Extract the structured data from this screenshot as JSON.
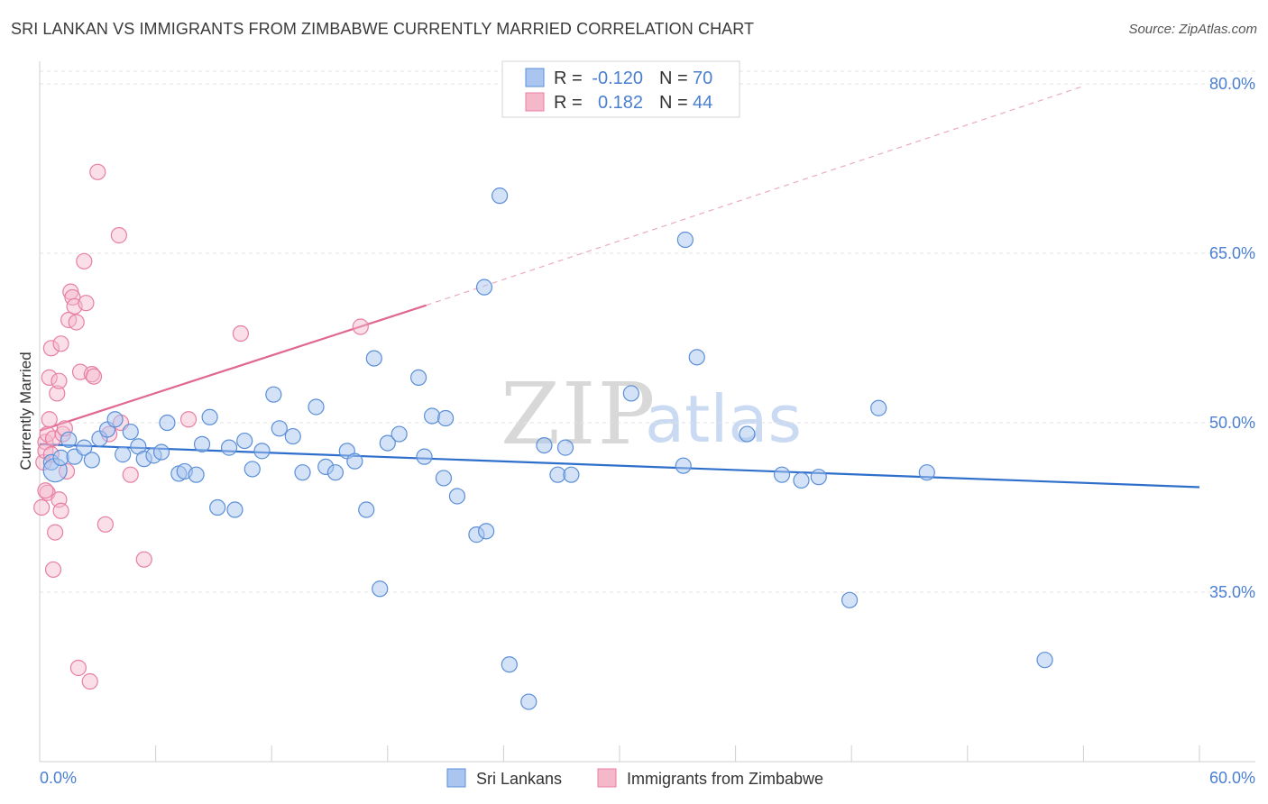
{
  "title": "SRI LANKAN VS IMMIGRANTS FROM ZIMBABWE CURRENTLY MARRIED CORRELATION CHART",
  "source": "Source: ZipAtlas.com",
  "colors": {
    "blue": "#5b8fd8",
    "blue_fill": "#aac6f0",
    "blue_line": "#2f6fcc",
    "pink": "#e87fa3",
    "pink_fill": "#f5b8cb",
    "pink_line": "#e06890",
    "axis_label": "#4a7fd0"
  },
  "legend": {
    "rows": [
      {
        "r_label": "R =",
        "r_value": "-0.120",
        "n_label": "N =",
        "n_value": "70"
      },
      {
        "r_label": "R =",
        "r_value": "0.182",
        "n_label": "N =",
        "n_value": "44"
      }
    ]
  },
  "bottom_legend": {
    "series1": "Sri Lankans",
    "series2": "Immigrants from Zimbabwe"
  },
  "watermark": {
    "zip": "ZIP",
    "atlas": "atlas"
  },
  "chart_data": {
    "type": "scatter",
    "title": "SRI LANKAN VS IMMIGRANTS FROM ZIMBABWE CURRENTLY MARRIED CORRELATION CHART",
    "xlabel": "",
    "ylabel": "Currently Married",
    "xlim": [
      0,
      60
    ],
    "ylim": [
      20,
      82
    ],
    "x_tick_labels": [
      "0.0%",
      "60.0%"
    ],
    "y_ticks": [
      35,
      50,
      65,
      80
    ],
    "y_tick_labels": [
      "35.0%",
      "50.0%",
      "65.0%",
      "80.0%"
    ],
    "grid": true,
    "series": [
      {
        "name": "Sri Lankans",
        "R": -0.12,
        "N": 70,
        "trend": {
          "x0": 0,
          "y0": 48.1,
          "x1": 60,
          "y1": 44.3
        },
        "points": [
          [
            0.6,
            46.5
          ],
          [
            0.8,
            45.8
          ],
          [
            1.1,
            46.9
          ],
          [
            1.5,
            48.5
          ],
          [
            1.8,
            47.0
          ],
          [
            2.3,
            47.8
          ],
          [
            2.7,
            46.7
          ],
          [
            3.1,
            48.6
          ],
          [
            3.5,
            49.4
          ],
          [
            3.9,
            50.3
          ],
          [
            4.3,
            47.2
          ],
          [
            4.7,
            49.2
          ],
          [
            5.1,
            47.9
          ],
          [
            5.4,
            46.8
          ],
          [
            5.9,
            47.1
          ],
          [
            6.3,
            47.4
          ],
          [
            6.6,
            50.0
          ],
          [
            7.2,
            45.5
          ],
          [
            7.5,
            45.7
          ],
          [
            8.1,
            45.4
          ],
          [
            8.4,
            48.1
          ],
          [
            8.8,
            50.5
          ],
          [
            9.2,
            42.5
          ],
          [
            9.8,
            47.8
          ],
          [
            10.1,
            42.3
          ],
          [
            10.6,
            48.4
          ],
          [
            11.0,
            45.9
          ],
          [
            11.5,
            47.5
          ],
          [
            12.1,
            52.5
          ],
          [
            12.4,
            49.5
          ],
          [
            13.1,
            48.8
          ],
          [
            13.6,
            45.6
          ],
          [
            14.3,
            51.4
          ],
          [
            14.8,
            46.1
          ],
          [
            15.3,
            45.6
          ],
          [
            15.9,
            47.5
          ],
          [
            16.3,
            46.6
          ],
          [
            16.9,
            42.3
          ],
          [
            17.3,
            55.7
          ],
          [
            17.6,
            35.3
          ],
          [
            18.0,
            48.2
          ],
          [
            18.6,
            49.0
          ],
          [
            19.6,
            54.0
          ],
          [
            19.9,
            47.0
          ],
          [
            20.3,
            50.6
          ],
          [
            20.9,
            45.1
          ],
          [
            21.0,
            50.4
          ],
          [
            21.6,
            43.5
          ],
          [
            22.6,
            40.1
          ],
          [
            23.0,
            62.0
          ],
          [
            23.1,
            40.4
          ],
          [
            23.8,
            70.1
          ],
          [
            24.3,
            28.6
          ],
          [
            25.3,
            25.3
          ],
          [
            26.1,
            48.0
          ],
          [
            26.8,
            45.4
          ],
          [
            27.2,
            47.8
          ],
          [
            27.5,
            45.4
          ],
          [
            30.6,
            52.6
          ],
          [
            33.3,
            46.2
          ],
          [
            33.4,
            66.2
          ],
          [
            34.0,
            55.8
          ],
          [
            36.6,
            49.0
          ],
          [
            38.4,
            45.4
          ],
          [
            39.4,
            44.9
          ],
          [
            40.3,
            45.2
          ],
          [
            41.9,
            34.3
          ],
          [
            43.4,
            51.3
          ],
          [
            45.9,
            45.6
          ],
          [
            52.0,
            29.0
          ]
        ]
      },
      {
        "name": "Immigrants from Zimbabwe",
        "R": 0.182,
        "N": 44,
        "trend": {
          "x0": 0,
          "y0": 49.3,
          "x1": 20,
          "y1": 60.4,
          "extended_x1": 54,
          "extended_y1": 79.8
        },
        "points": [
          [
            0.1,
            42.5
          ],
          [
            0.2,
            46.5
          ],
          [
            0.3,
            48.3
          ],
          [
            0.3,
            47.5
          ],
          [
            0.4,
            49.0
          ],
          [
            0.4,
            43.8
          ],
          [
            0.5,
            50.3
          ],
          [
            0.5,
            54.0
          ],
          [
            0.6,
            56.6
          ],
          [
            0.7,
            48.6
          ],
          [
            0.7,
            37.0
          ],
          [
            0.8,
            40.3
          ],
          [
            0.9,
            52.6
          ],
          [
            1.0,
            53.7
          ],
          [
            1.0,
            43.2
          ],
          [
            1.1,
            42.2
          ],
          [
            1.1,
            57.0
          ],
          [
            1.2,
            49.0
          ],
          [
            1.3,
            49.5
          ],
          [
            1.4,
            45.7
          ],
          [
            1.5,
            59.1
          ],
          [
            1.6,
            61.6
          ],
          [
            1.7,
            61.1
          ],
          [
            1.8,
            60.3
          ],
          [
            1.9,
            58.9
          ],
          [
            2.0,
            28.3
          ],
          [
            2.1,
            54.5
          ],
          [
            2.3,
            64.3
          ],
          [
            2.4,
            60.6
          ],
          [
            2.6,
            27.1
          ],
          [
            2.7,
            54.3
          ],
          [
            2.8,
            54.1
          ],
          [
            3.0,
            72.2
          ],
          [
            3.4,
            41.0
          ],
          [
            3.6,
            49.0
          ],
          [
            4.1,
            66.6
          ],
          [
            4.2,
            50.0
          ],
          [
            4.7,
            45.4
          ],
          [
            5.4,
            37.9
          ],
          [
            7.7,
            50.3
          ],
          [
            10.4,
            57.9
          ],
          [
            16.6,
            58.5
          ],
          [
            0.3,
            44.0
          ],
          [
            0.6,
            47.2
          ]
        ]
      }
    ]
  }
}
